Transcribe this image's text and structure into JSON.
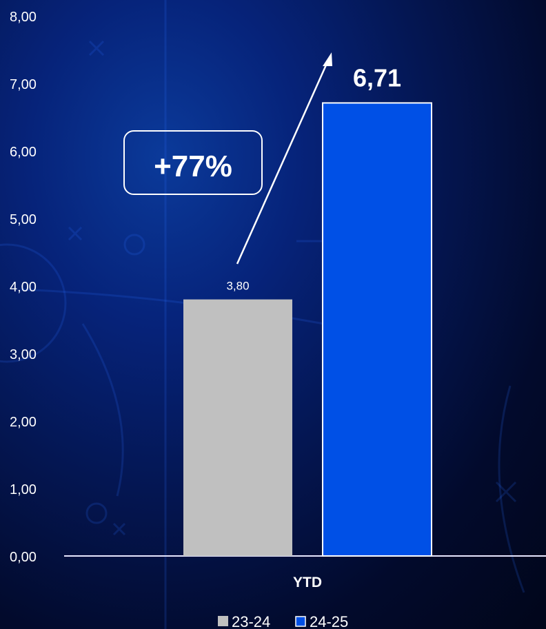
{
  "chart_data": {
    "type": "bar",
    "categories": [
      "YTD"
    ],
    "series": [
      {
        "name": "23-24",
        "values": [
          3.8
        ],
        "label": "3,80",
        "color": "#c0c0c0"
      },
      {
        "name": "24-25",
        "values": [
          6.71
        ],
        "label": "6,71",
        "color": "#0050e6"
      }
    ],
    "ylim": [
      0,
      8
    ],
    "yticks": [
      "0,00",
      "1,00",
      "2,00",
      "3,00",
      "4,00",
      "5,00",
      "6,00",
      "7,00",
      "8,00"
    ],
    "annotation": "+77%",
    "legend_position": "bottom",
    "grid": false
  }
}
